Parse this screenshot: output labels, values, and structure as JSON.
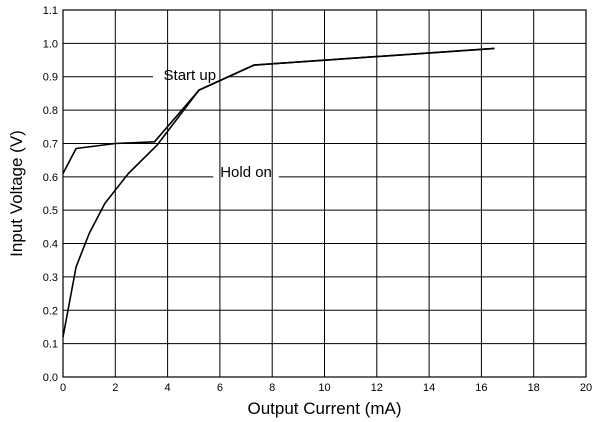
{
  "chart_data": {
    "type": "line",
    "xlabel": "Output Current (mA)",
    "ylabel": "Input Voltage (V)",
    "xlim": [
      0,
      20
    ],
    "ylim": [
      0,
      1.1
    ],
    "xticks": [
      "0",
      "2",
      "4",
      "6",
      "8",
      "10",
      "12",
      "14",
      "16",
      "18",
      "20"
    ],
    "yticks": [
      "0.0",
      "0.1",
      "0.2",
      "0.3",
      "0.4",
      "0.5",
      "0.6",
      "0.7",
      "0.8",
      "0.9",
      "1.0",
      "1.1"
    ],
    "grid": true,
    "series": [
      {
        "name": "Start up",
        "x": [
          0,
          0.5,
          2.0,
          3.5,
          5.2,
          7.3,
          16.5
        ],
        "y": [
          0.61,
          0.685,
          0.7,
          0.705,
          0.86,
          0.935,
          0.985
        ]
      },
      {
        "name": "Hold on",
        "x": [
          0,
          0.5,
          1.0,
          1.6,
          2.5,
          3.6,
          5.2,
          7.3,
          16.5
        ],
        "y": [
          0.12,
          0.33,
          0.43,
          0.52,
          0.61,
          0.695,
          0.86,
          0.935,
          0.985
        ]
      }
    ],
    "annotations": [
      {
        "text": "Start up",
        "series": "Start up",
        "x": 4.85,
        "y": 0.905
      },
      {
        "text": "Hold on",
        "series": "Hold on",
        "x": 7.0,
        "y": 0.615
      }
    ]
  }
}
